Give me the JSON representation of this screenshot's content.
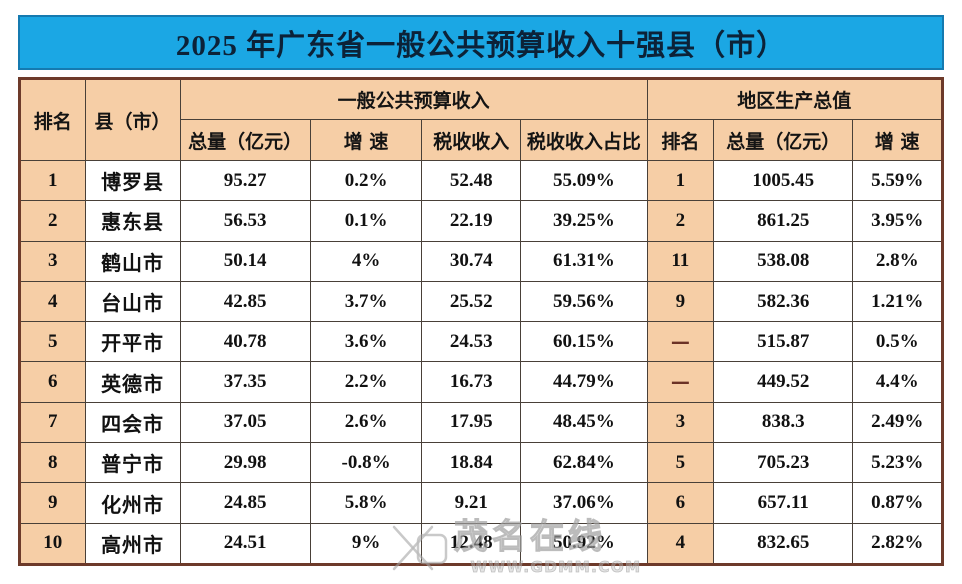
{
  "title": "2025 年广东省一般公共预算收入十强县（市）",
  "colors": {
    "title_background": "#1ba7e4",
    "title_text": "#0c2238",
    "header_cell_background": "#f6cea6",
    "data_cell_background": "#ffffff",
    "outer_border": "#6d3a2a",
    "inner_border": "#494038",
    "dash_text": "#6b3226"
  },
  "table": {
    "header": {
      "rank": "排名",
      "county": "县（市）",
      "revenue_group": "一般公共预算收入",
      "gdp_group": "地区生产总值",
      "revenue_total": "总量（亿元）",
      "revenue_growth": "增 速",
      "tax_revenue": "税收收入",
      "tax_share": "税收收入占比",
      "gdp_rank": "排名",
      "gdp_total": "总量（亿元）",
      "gdp_growth": "增 速"
    },
    "rows": [
      {
        "rank": "1",
        "county": "博罗县",
        "total": "95.27",
        "growth": "0.2%",
        "tax": "52.48",
        "tax_share": "55.09%",
        "gdp_rank": "1",
        "gdp_total": "1005.45",
        "gdp_growth": "5.59%"
      },
      {
        "rank": "2",
        "county": "惠东县",
        "total": "56.53",
        "growth": "0.1%",
        "tax": "22.19",
        "tax_share": "39.25%",
        "gdp_rank": "2",
        "gdp_total": "861.25",
        "gdp_growth": "3.95%"
      },
      {
        "rank": "3",
        "county": "鹤山市",
        "total": "50.14",
        "growth": "4%",
        "tax": "30.74",
        "tax_share": "61.31%",
        "gdp_rank": "11",
        "gdp_total": "538.08",
        "gdp_growth": "2.8%"
      },
      {
        "rank": "4",
        "county": "台山市",
        "total": "42.85",
        "growth": "3.7%",
        "tax": "25.52",
        "tax_share": "59.56%",
        "gdp_rank": "9",
        "gdp_total": "582.36",
        "gdp_growth": "1.21%"
      },
      {
        "rank": "5",
        "county": "开平市",
        "total": "40.78",
        "growth": "3.6%",
        "tax": "24.53",
        "tax_share": "60.15%",
        "gdp_rank": "—",
        "gdp_total": "515.87",
        "gdp_growth": "0.5%"
      },
      {
        "rank": "6",
        "county": "英德市",
        "total": "37.35",
        "growth": "2.2%",
        "tax": "16.73",
        "tax_share": "44.79%",
        "gdp_rank": "—",
        "gdp_total": "449.52",
        "gdp_growth": "4.4%"
      },
      {
        "rank": "7",
        "county": "四会市",
        "total": "37.05",
        "growth": "2.6%",
        "tax": "17.95",
        "tax_share": "48.45%",
        "gdp_rank": "3",
        "gdp_total": "838.3",
        "gdp_growth": "2.49%"
      },
      {
        "rank": "8",
        "county": "普宁市",
        "total": "29.98",
        "growth": "-0.8%",
        "tax": "18.84",
        "tax_share": "62.84%",
        "gdp_rank": "5",
        "gdp_total": "705.23",
        "gdp_growth": "5.23%"
      },
      {
        "rank": "9",
        "county": "化州市",
        "total": "24.85",
        "growth": "5.8%",
        "tax": "9.21",
        "tax_share": "37.06%",
        "gdp_rank": "6",
        "gdp_total": "657.11",
        "gdp_growth": "0.87%"
      },
      {
        "rank": "10",
        "county": "高州市",
        "total": "24.51",
        "growth": "9%",
        "tax": "12.48",
        "tax_share": "50.92%",
        "gdp_rank": "4",
        "gdp_total": "832.65",
        "gdp_growth": "2.82%"
      }
    ]
  },
  "watermark": {
    "site_name": "茂名在线",
    "url": "WWW.GDMM.COM",
    "logo": "x-mark-logo"
  },
  "chart_data": {
    "type": "table",
    "title": "2025 年广东省一般公共预算收入十强县（市）",
    "column_groups": [
      "一般公共预算收入",
      "地区生产总值"
    ],
    "columns": [
      "排名",
      "县（市）",
      "一般公共预算收入 总量（亿元）",
      "一般公共预算收入 增速",
      "税收收入",
      "税收收入占比",
      "地区生产总值 排名",
      "地区生产总值 总量（亿元）",
      "地区生产总值 增速"
    ],
    "rows": [
      [
        "1",
        "博罗县",
        95.27,
        "0.2%",
        52.48,
        "55.09%",
        "1",
        1005.45,
        "5.59%"
      ],
      [
        "2",
        "惠东县",
        56.53,
        "0.1%",
        22.19,
        "39.25%",
        "2",
        861.25,
        "3.95%"
      ],
      [
        "3",
        "鹤山市",
        50.14,
        "4%",
        30.74,
        "61.31%",
        "11",
        538.08,
        "2.8%"
      ],
      [
        "4",
        "台山市",
        42.85,
        "3.7%",
        25.52,
        "59.56%",
        "9",
        582.36,
        "1.21%"
      ],
      [
        "5",
        "开平市",
        40.78,
        "3.6%",
        24.53,
        "60.15%",
        "—",
        515.87,
        "0.5%"
      ],
      [
        "6",
        "英德市",
        37.35,
        "2.2%",
        16.73,
        "44.79%",
        "—",
        449.52,
        "4.4%"
      ],
      [
        "7",
        "四会市",
        37.05,
        "2.6%",
        17.95,
        "48.45%",
        "3",
        838.3,
        "2.49%"
      ],
      [
        "8",
        "普宁市",
        29.98,
        "-0.8%",
        18.84,
        "62.84%",
        "5",
        705.23,
        "5.23%"
      ],
      [
        "9",
        "化州市",
        24.85,
        "5.8%",
        9.21,
        "37.06%",
        "6",
        657.11,
        "0.87%"
      ],
      [
        "10",
        "高州市",
        24.51,
        "9%",
        12.48,
        "50.92%",
        "4",
        832.65,
        "2.82%"
      ]
    ]
  }
}
